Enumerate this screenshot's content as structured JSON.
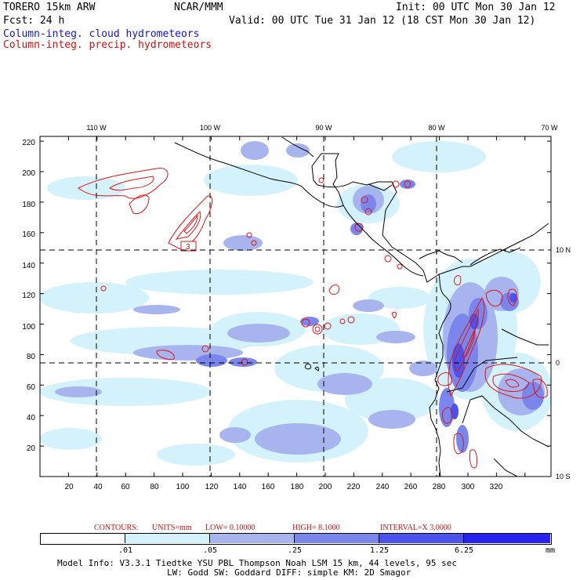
{
  "header": {
    "model": "TORERO  15km ARW",
    "org": "NCAR/MMM",
    "init": "Init: 00 UTC Mon 30 Jan 12",
    "fcst": "Fcst:   24 h",
    "valid": "Valid: 00 UTC Tue 31 Jan 12 (18 CST Mon 30 Jan 12)",
    "field1": "Column-integ. cloud hydrometeors",
    "field2": "Column-integ. precip. hydrometeors"
  },
  "colors": {
    "field1": "#1414c8",
    "field2": "#d01010",
    "palette": [
      "#ffffff",
      "#d4f2fb",
      "#a8b4ee",
      "#7a86ec",
      "#4c52ee",
      "#2a22ee"
    ]
  },
  "map": {
    "lon_labels_top": [
      "110 W",
      "100 W",
      "90 W",
      "80 W",
      "70 W"
    ],
    "lat_labels_right": [
      "10 N",
      "0",
      "10 S"
    ],
    "x_ticks": [
      "20",
      "40",
      "60",
      "80",
      "100",
      "120",
      "140",
      "160",
      "180",
      "200",
      "220",
      "240",
      "260",
      "280",
      "300",
      "320"
    ],
    "y_ticks": [
      "220",
      "200",
      "180",
      "160",
      "140",
      "120",
      "100",
      "80",
      "60",
      "40",
      "20"
    ],
    "contour_label": "3"
  },
  "contours_info": {
    "contours": "CONTOURS:",
    "units": "UNITS=mm",
    "low": "LOW= 0.10000",
    "high": "HIGH=  8.1000",
    "interval": "INTERVAL=X  3.0000"
  },
  "colorbar": {
    "labels": [
      ".01",
      ".05",
      ".25",
      "1.25",
      "6.25"
    ],
    "unit": "mm"
  },
  "footer": {
    "line1": "Model Info: V3.3.1   Tiedtke YSU PBL  Thompson    Noah LSM  15 km,   44 levels,   95 sec",
    "line2": "LW: Godd SW: Goddard DIFF: simple KM: 2D Smagor"
  }
}
